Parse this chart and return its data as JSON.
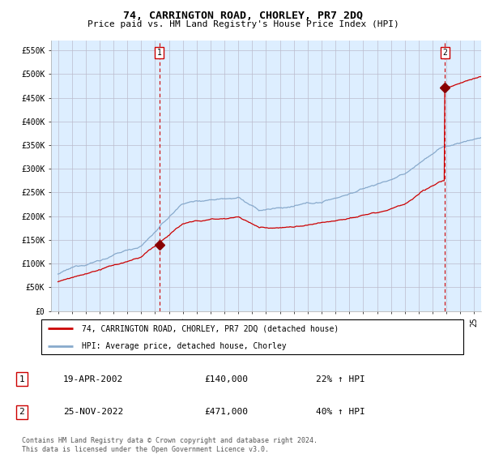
{
  "title": "74, CARRINGTON ROAD, CHORLEY, PR7 2DQ",
  "subtitle": "Price paid vs. HM Land Registry's House Price Index (HPI)",
  "ylabel_ticks": [
    "£0",
    "£50K",
    "£100K",
    "£150K",
    "£200K",
    "£250K",
    "£300K",
    "£350K",
    "£400K",
    "£450K",
    "£500K",
    "£550K"
  ],
  "ytick_values": [
    0,
    50000,
    100000,
    150000,
    200000,
    250000,
    300000,
    350000,
    400000,
    450000,
    500000,
    550000
  ],
  "ylim": [
    0,
    570000
  ],
  "xlim_start": 1994.5,
  "xlim_end": 2025.5,
  "xtick_years": [
    1995,
    1996,
    1997,
    1998,
    1999,
    2000,
    2001,
    2002,
    2003,
    2004,
    2005,
    2006,
    2007,
    2008,
    2009,
    2010,
    2011,
    2012,
    2013,
    2014,
    2015,
    2016,
    2017,
    2018,
    2019,
    2020,
    2021,
    2022,
    2023,
    2024,
    2025
  ],
  "transaction1_year": 2002.3,
  "transaction1_value": 140000,
  "transaction2_year": 2022.9,
  "transaction2_value": 471000,
  "red_line_color": "#cc0000",
  "blue_line_color": "#88aacc",
  "vline_color": "#cc0000",
  "marker_color": "#880000",
  "grid_color": "#bbbbcc",
  "chart_bg_color": "#ddeeff",
  "background_color": "#ffffff",
  "legend_line1": "74, CARRINGTON ROAD, CHORLEY, PR7 2DQ (detached house)",
  "legend_line2": "HPI: Average price, detached house, Chorley",
  "table_row1": [
    "1",
    "19-APR-2002",
    "£140,000",
    "22% ↑ HPI"
  ],
  "table_row2": [
    "2",
    "25-NOV-2022",
    "£471,000",
    "40% ↑ HPI"
  ],
  "footnote": "Contains HM Land Registry data © Crown copyright and database right 2024.\nThis data is licensed under the Open Government Licence v3.0."
}
